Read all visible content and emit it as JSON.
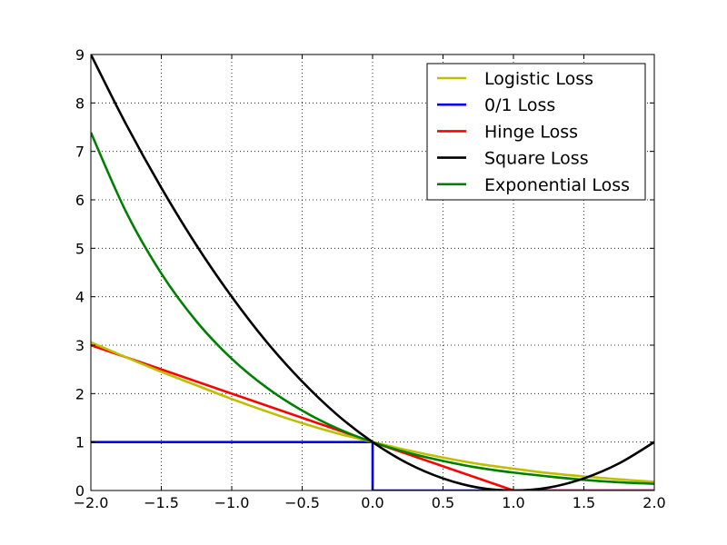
{
  "chart_data": {
    "type": "line",
    "title": "",
    "xlabel": "",
    "ylabel": "",
    "xlim": [
      -2.0,
      2.0
    ],
    "ylim": [
      0,
      9
    ],
    "grid": true,
    "legend_position": "top-right",
    "x_ticks": [
      -2.0,
      -1.5,
      -1.0,
      -0.5,
      0.0,
      0.5,
      1.0,
      1.5,
      2.0
    ],
    "x_tick_labels": [
      "−2.0",
      "−1.5",
      "−1.0",
      "−0.5",
      "0.0",
      "0.5",
      "1.0",
      "1.5",
      "2.0"
    ],
    "y_ticks": [
      0,
      1,
      2,
      3,
      4,
      5,
      6,
      7,
      8,
      9
    ],
    "y_tick_labels": [
      "0",
      "1",
      "2",
      "3",
      "4",
      "5",
      "6",
      "7",
      "8",
      "9"
    ],
    "series": [
      {
        "name": "Logistic Loss",
        "color": "#bfbf00",
        "x": [
          -2.0,
          -1.75,
          -1.5,
          -1.25,
          -1.0,
          -0.75,
          -0.5,
          -0.25,
          0.0,
          0.25,
          0.5,
          0.75,
          1.0,
          1.25,
          1.5,
          1.75,
          2.0
        ],
        "y": [
          3.06,
          2.75,
          2.45,
          2.17,
          1.89,
          1.63,
          1.39,
          1.18,
          1.0,
          0.83,
          0.68,
          0.55,
          0.45,
          0.36,
          0.29,
          0.23,
          0.18
        ]
      },
      {
        "name": "0/1 Loss",
        "color": "#0000ff",
        "x": [
          -2.0,
          0.0,
          0.0,
          2.0
        ],
        "y": [
          1,
          1,
          0,
          0
        ]
      },
      {
        "name": "Hinge Loss",
        "color": "#ff0000",
        "x": [
          -2.0,
          1.0,
          2.0
        ],
        "y": [
          3,
          0,
          0
        ]
      },
      {
        "name": "Square Loss",
        "color": "#000000",
        "x": [
          -2.0,
          -1.75,
          -1.5,
          -1.25,
          -1.0,
          -0.75,
          -0.5,
          -0.25,
          0.0,
          0.25,
          0.5,
          0.75,
          1.0,
          1.25,
          1.5,
          1.75,
          2.0
        ],
        "y": [
          9.0,
          7.56,
          6.25,
          5.06,
          4.0,
          3.06,
          2.25,
          1.56,
          1.0,
          0.56,
          0.25,
          0.06,
          0.0,
          0.06,
          0.25,
          0.56,
          1.0
        ]
      },
      {
        "name": "Exponential Loss",
        "color": "#008000",
        "x": [
          -2.0,
          -1.75,
          -1.5,
          -1.25,
          -1.0,
          -0.75,
          -0.5,
          -0.25,
          0.0,
          0.25,
          0.5,
          0.75,
          1.0,
          1.25,
          1.5,
          1.75,
          2.0
        ],
        "y": [
          7.39,
          5.75,
          4.48,
          3.49,
          2.72,
          2.12,
          1.65,
          1.28,
          1.0,
          0.78,
          0.61,
          0.47,
          0.37,
          0.29,
          0.22,
          0.17,
          0.14
        ]
      }
    ]
  }
}
